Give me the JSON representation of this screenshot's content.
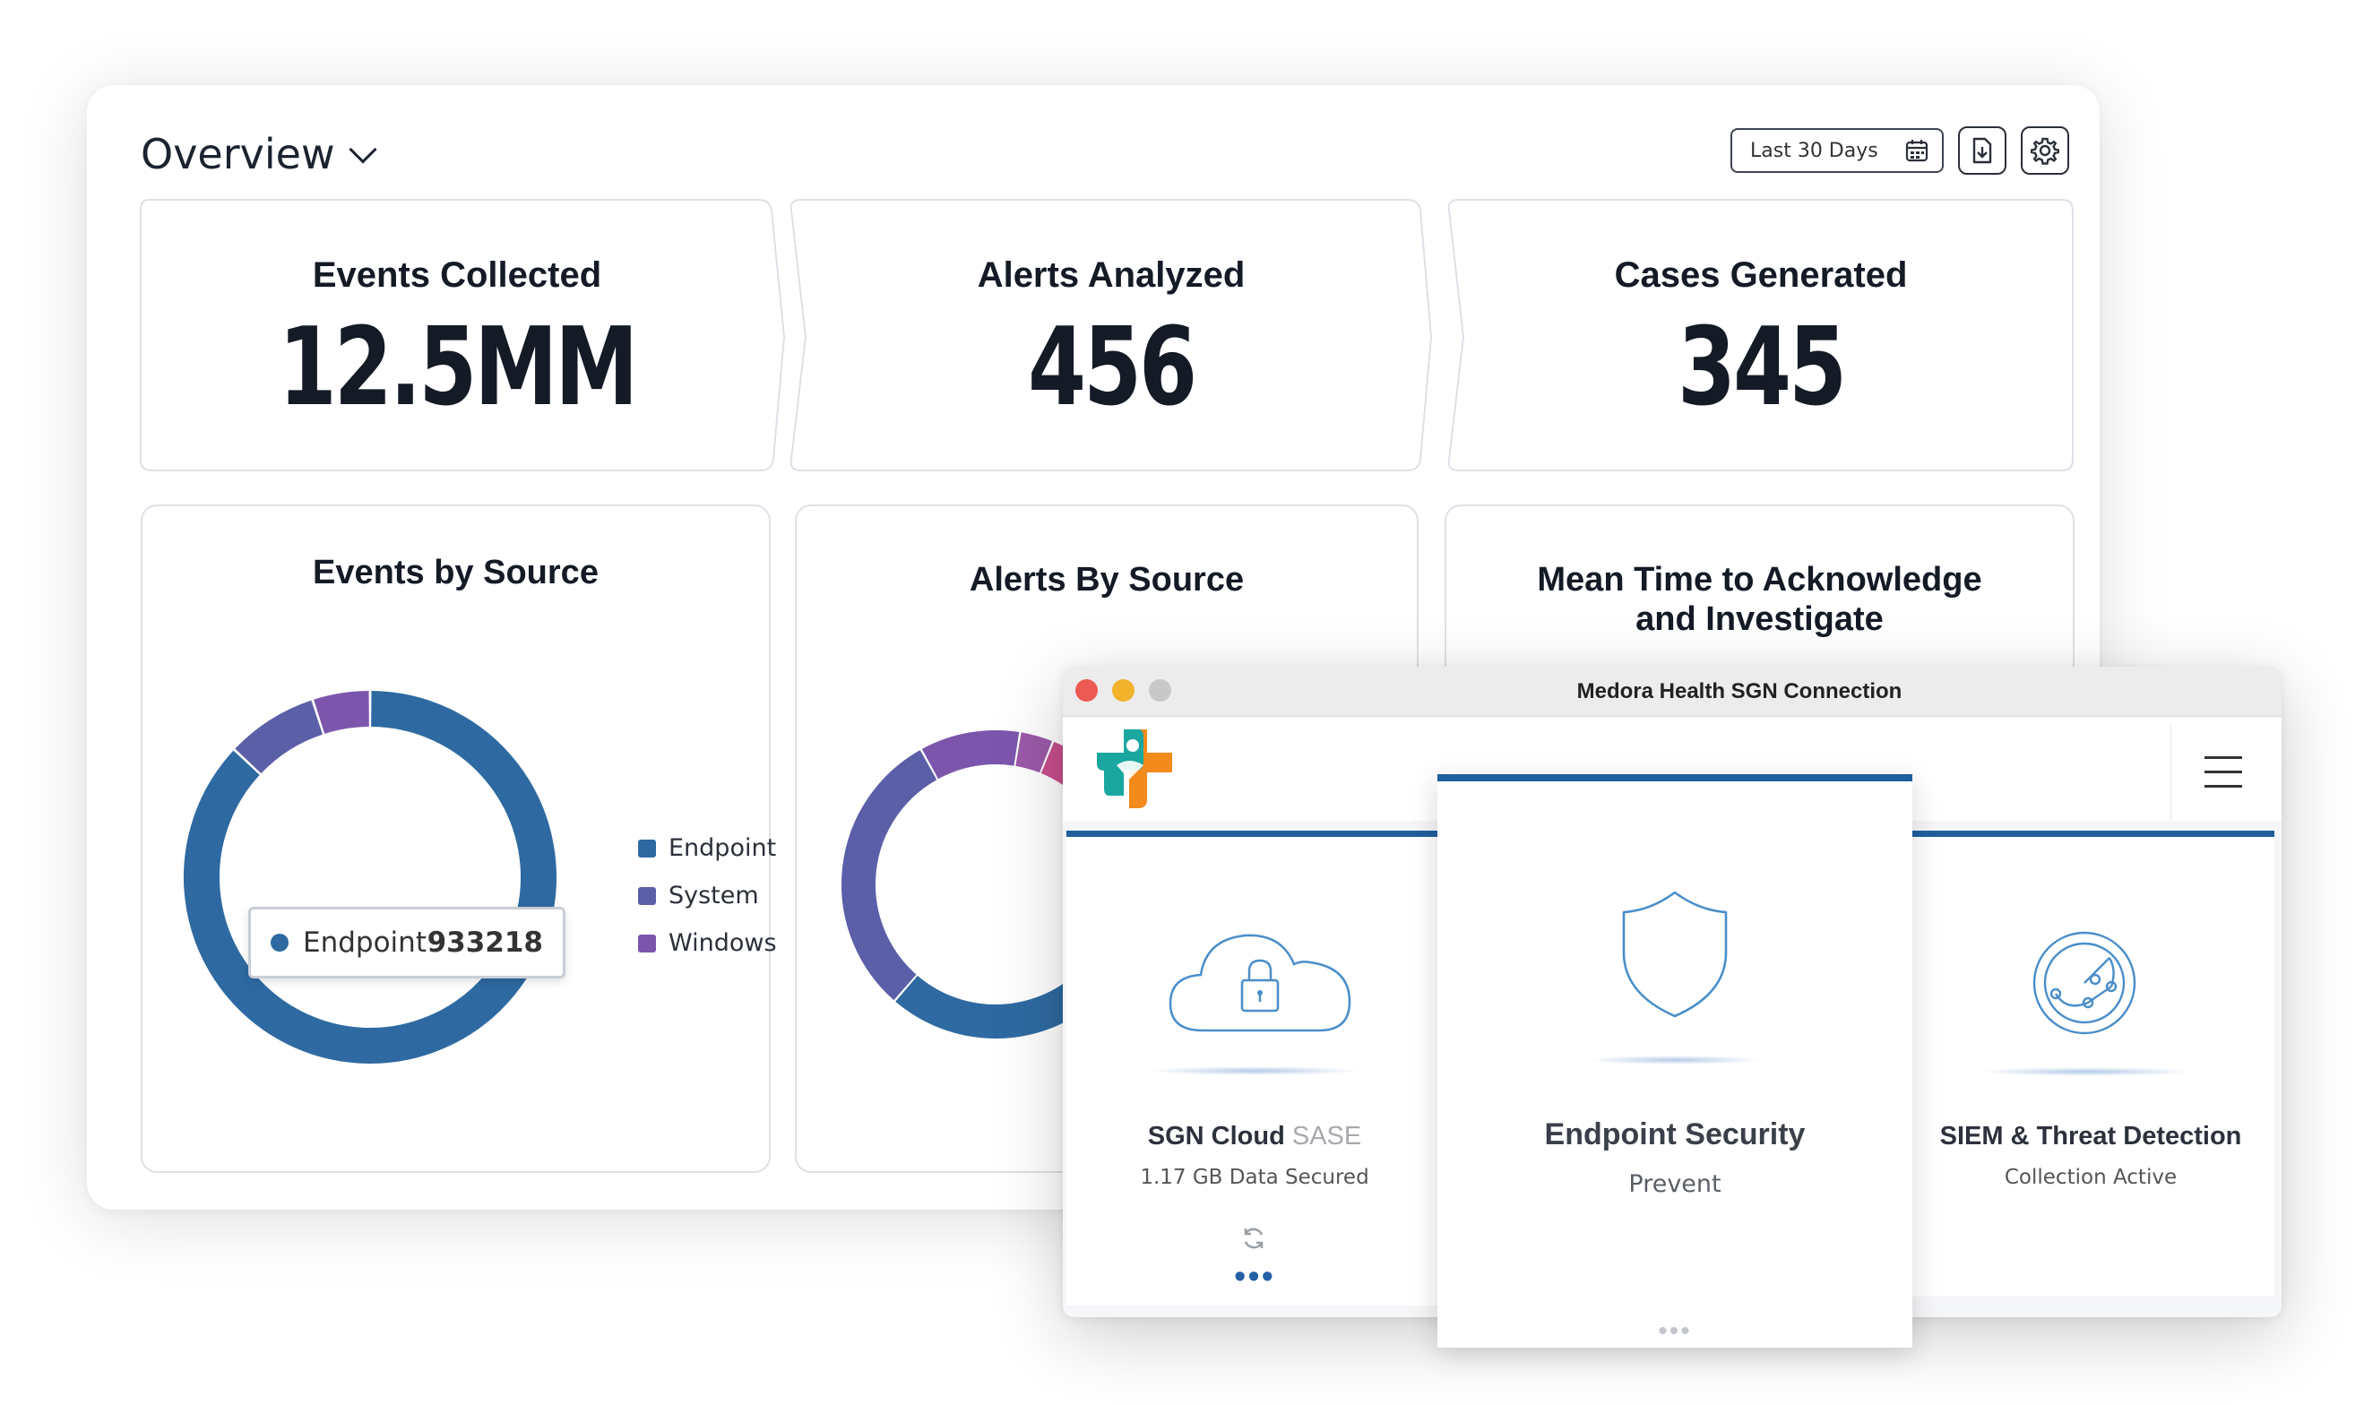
{
  "dashboard": {
    "title": "Overview",
    "date_range": "Last 30 Days",
    "kpis": [
      {
        "title": "Events Collected",
        "value": "12.5MM"
      },
      {
        "title": "Alerts Analyzed",
        "value": "456"
      },
      {
        "title": "Cases Generated",
        "value": "345"
      }
    ],
    "charts": {
      "events_title": "Events by Source",
      "alerts_title": "Alerts By Source",
      "mtta_title_line1": "Mean Time to Acknowledge",
      "mtta_title_line2": "and Investigate"
    },
    "tooltip": {
      "label": "Endpoint",
      "value": "933218"
    }
  },
  "chart_data": [
    {
      "type": "pie",
      "title": "Events by Source",
      "legend": [
        "Endpoint",
        "System",
        "Windows"
      ],
      "colors": [
        "#2e6aa1",
        "#5b5fa8",
        "#7c56ad"
      ],
      "values": [
        87,
        8,
        5
      ],
      "tooltip": {
        "series": "Endpoint",
        "value": 933218
      }
    },
    {
      "type": "pie",
      "title": "Alerts By Source",
      "colors": [
        "#2e6aa1",
        "#5b5fa8",
        "#7c56ad",
        "#9b5aa8",
        "#c84f8e",
        "#e55377",
        "#f0a432"
      ],
      "values": [
        38,
        26,
        9,
        3,
        3,
        3,
        3
      ]
    }
  ],
  "app": {
    "window_title": "Medora Health SGN Connection",
    "tiles": [
      {
        "title_main": "SGN Cloud",
        "title_suffix": "SASE",
        "subtitle": "1.17 GB Data Secured"
      },
      {
        "title": "Endpoint Security",
        "subtitle": "Prevent"
      },
      {
        "title": "SIEM & Threat Detection",
        "subtitle": "Collection Active"
      }
    ]
  },
  "colors": {
    "primary_blue": "#2e6aa1",
    "tile_bar": "#1f5f9e",
    "icon_blue": "#4a8ec9",
    "logo_teal": "#1aa7a0",
    "logo_orange": "#f28a1c"
  },
  "icons": [
    "chevron-down-icon",
    "calendar-icon",
    "download-icon",
    "gear-icon",
    "cloud-lock-icon",
    "shield-icon",
    "radar-icon",
    "refresh-icon",
    "menu-icon",
    "medora-logo"
  ]
}
